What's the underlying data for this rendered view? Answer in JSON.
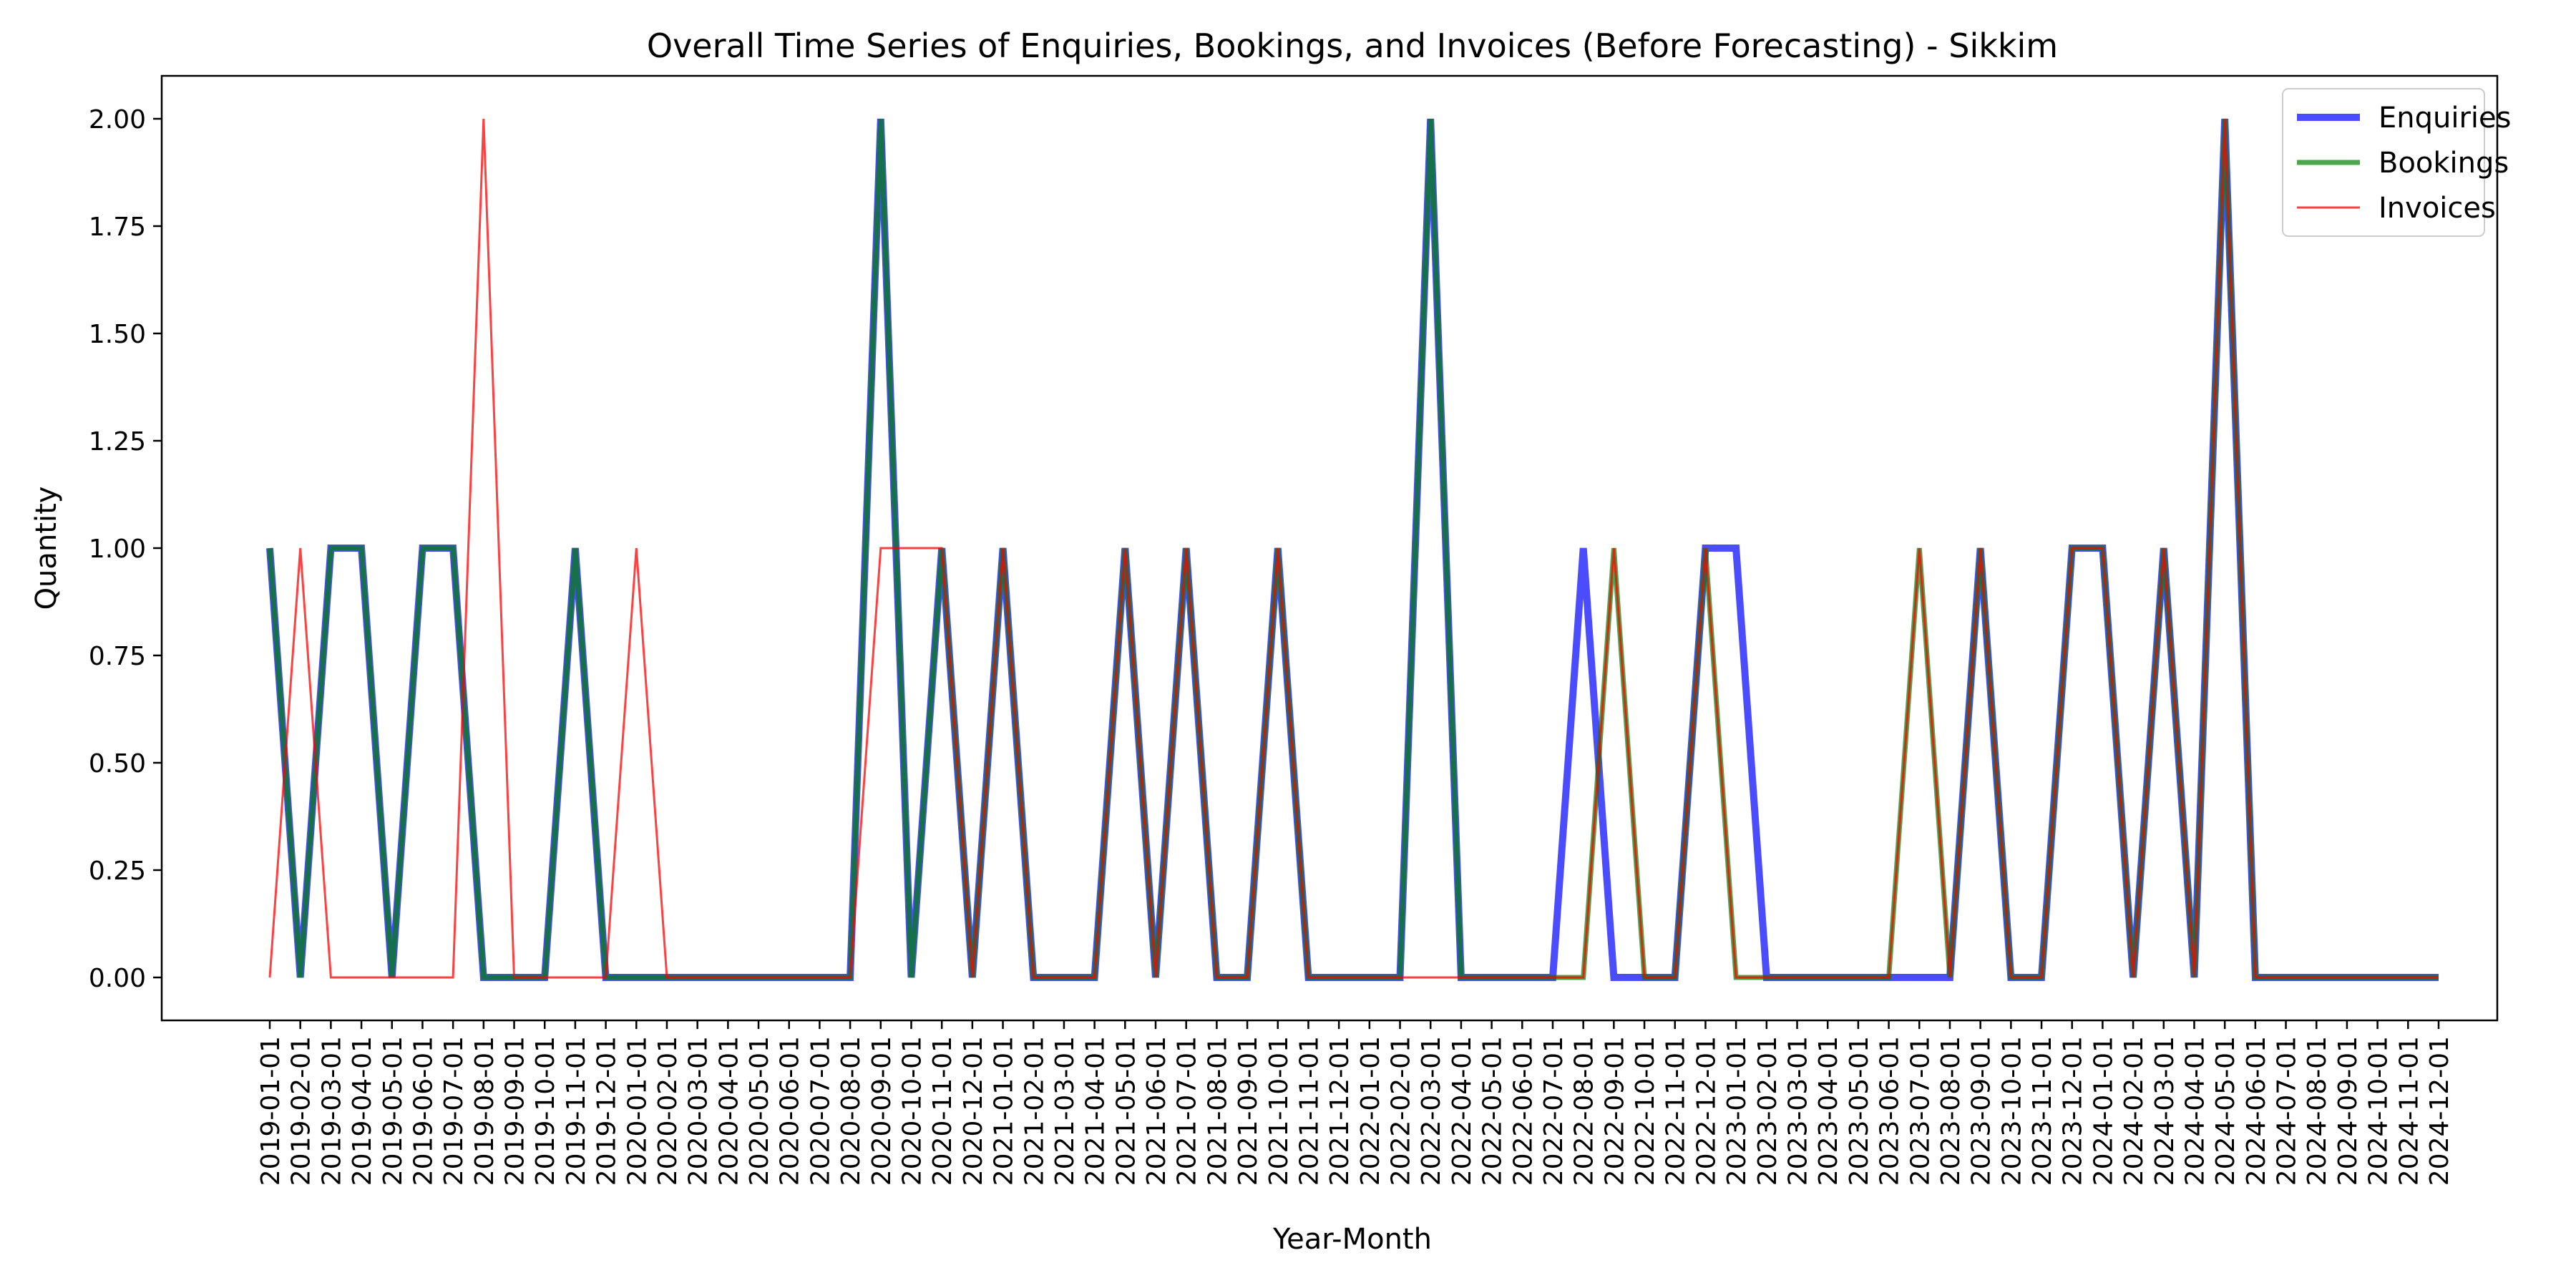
{
  "chart_data": {
    "type": "line",
    "title": "Overall Time Series of Enquiries, Bookings, and Invoices (Before Forecasting) - Sikkim",
    "xlabel": "Year-Month",
    "ylabel": "Quantity",
    "ylim": [
      -0.1,
      2.1
    ],
    "yticks": [
      "0.00",
      "0.25",
      "0.50",
      "0.75",
      "1.00",
      "1.25",
      "1.50",
      "1.75",
      "2.00"
    ],
    "grid": false,
    "legend_position": "top-right",
    "x": [
      "2019-01-01",
      "2019-02-01",
      "2019-03-01",
      "2019-04-01",
      "2019-05-01",
      "2019-06-01",
      "2019-07-01",
      "2019-08-01",
      "2019-09-01",
      "2019-10-01",
      "2019-11-01",
      "2019-12-01",
      "2020-01-01",
      "2020-02-01",
      "2020-03-01",
      "2020-04-01",
      "2020-05-01",
      "2020-06-01",
      "2020-07-01",
      "2020-08-01",
      "2020-09-01",
      "2020-10-01",
      "2020-11-01",
      "2020-12-01",
      "2021-01-01",
      "2021-02-01",
      "2021-03-01",
      "2021-04-01",
      "2021-05-01",
      "2021-06-01",
      "2021-07-01",
      "2021-08-01",
      "2021-09-01",
      "2021-10-01",
      "2021-11-01",
      "2021-12-01",
      "2022-01-01",
      "2022-02-01",
      "2022-03-01",
      "2022-04-01",
      "2022-05-01",
      "2022-06-01",
      "2022-07-01",
      "2022-08-01",
      "2022-09-01",
      "2022-10-01",
      "2022-11-01",
      "2022-12-01",
      "2023-01-01",
      "2023-02-01",
      "2023-03-01",
      "2023-04-01",
      "2023-05-01",
      "2023-06-01",
      "2023-07-01",
      "2023-08-01",
      "2023-09-01",
      "2023-10-01",
      "2023-11-01",
      "2023-12-01",
      "2024-01-01",
      "2024-02-01",
      "2024-03-01",
      "2024-04-01",
      "2024-05-01",
      "2024-06-01",
      "2024-07-01",
      "2024-08-01",
      "2024-09-01",
      "2024-10-01",
      "2024-11-01",
      "2024-12-01"
    ],
    "series": [
      {
        "name": "Enquiries",
        "color": "#0000ff",
        "opacity": 0.7,
        "width": "thick",
        "values": [
          1,
          0,
          1,
          1,
          0,
          1,
          1,
          0,
          0,
          0,
          1,
          0,
          0,
          0,
          0,
          0,
          0,
          0,
          0,
          0,
          2,
          0,
          1,
          0,
          1,
          0,
          0,
          0,
          1,
          0,
          1,
          0,
          0,
          1,
          0,
          0,
          0,
          0,
          2,
          0,
          0,
          0,
          0,
          1,
          0,
          0,
          0,
          1,
          1,
          0,
          0,
          0,
          0,
          0,
          0,
          0,
          1,
          0,
          0,
          1,
          1,
          0,
          1,
          0,
          2,
          0,
          0,
          0,
          0,
          0,
          0,
          0
        ]
      },
      {
        "name": "Bookings",
        "color": "#008000",
        "opacity": 0.7,
        "width": "medium",
        "values": [
          1,
          0,
          1,
          1,
          0,
          1,
          1,
          0,
          0,
          0,
          1,
          0,
          0,
          0,
          0,
          0,
          0,
          0,
          0,
          0,
          2,
          0,
          1,
          0,
          1,
          0,
          0,
          0,
          1,
          0,
          1,
          0,
          0,
          1,
          0,
          0,
          0,
          0,
          2,
          0,
          0,
          0,
          0,
          0,
          1,
          0,
          0,
          1,
          0,
          0,
          0,
          0,
          0,
          0,
          1,
          0,
          1,
          0,
          0,
          1,
          1,
          0,
          1,
          0,
          2,
          0,
          0,
          0,
          0,
          0,
          0,
          0
        ]
      },
      {
        "name": "Invoices",
        "color": "#ff0000",
        "opacity": 0.75,
        "width": "thin",
        "values": [
          0,
          1,
          0,
          0,
          0,
          0,
          0,
          2,
          0,
          0,
          0,
          0,
          1,
          0,
          0,
          0,
          0,
          0,
          0,
          0,
          1,
          1,
          1,
          0,
          1,
          0,
          0,
          0,
          1,
          0,
          1,
          0,
          0,
          1,
          0,
          0,
          0,
          0,
          0,
          0,
          0,
          0,
          0,
          0,
          1,
          0,
          0,
          1,
          0,
          0,
          0,
          0,
          0,
          0,
          1,
          0,
          1,
          0,
          0,
          1,
          1,
          0,
          1,
          0,
          2,
          0,
          0,
          0,
          0,
          0,
          0,
          0
        ]
      }
    ]
  }
}
